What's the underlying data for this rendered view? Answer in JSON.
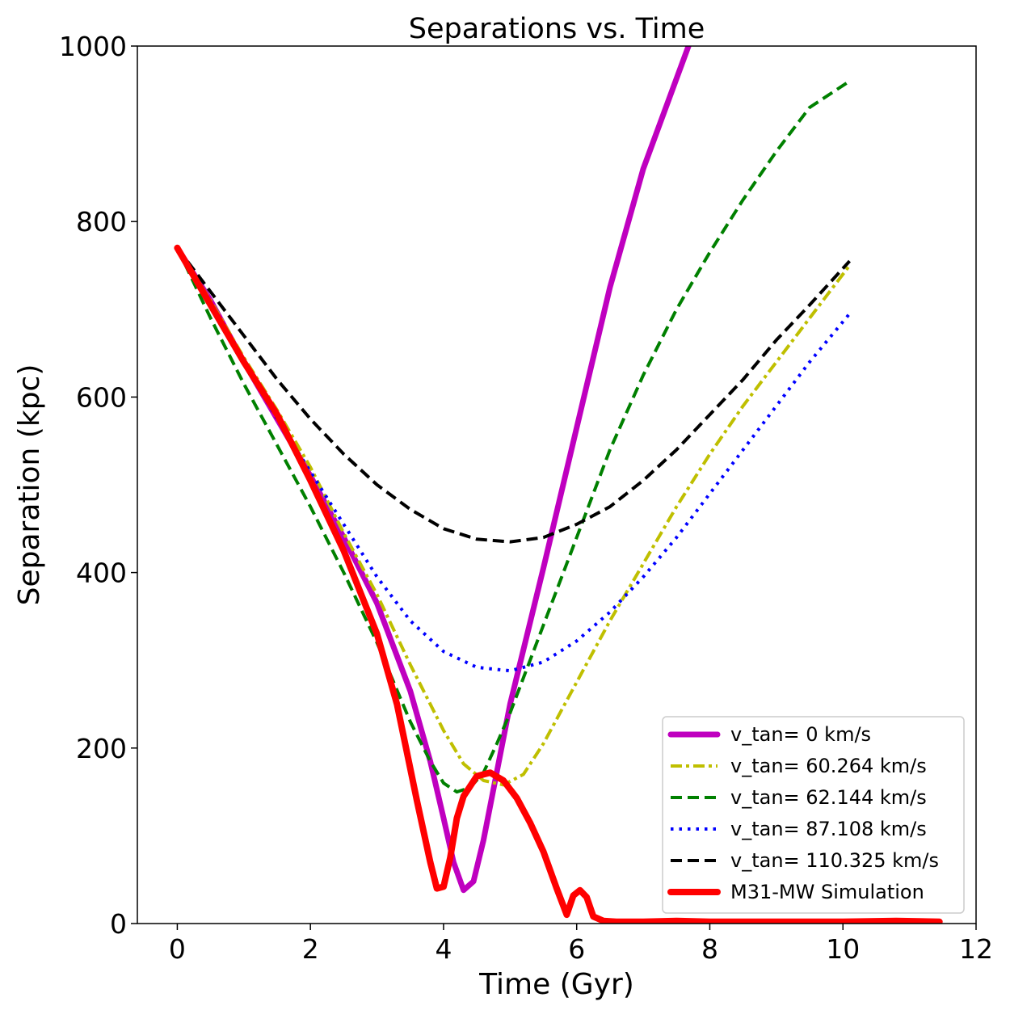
{
  "chart_data": {
    "type": "line",
    "title": "Separations vs. Time",
    "xlabel": "Time (Gyr)",
    "ylabel": "Separation (kpc)",
    "xlim": [
      -0.6,
      12
    ],
    "ylim": [
      0,
      1000
    ],
    "xticks": [
      0,
      2,
      4,
      6,
      8,
      10,
      12
    ],
    "yticks": [
      0,
      200,
      400,
      600,
      800,
      1000
    ],
    "grid": false,
    "legend_position": "lower-right",
    "series": [
      {
        "name": "v_tan= 0 km/s",
        "color": "#bf00bf",
        "style": "solid",
        "x": [
          0,
          0.5,
          1,
          1.5,
          2,
          2.5,
          3,
          3.5,
          3.8,
          4.0,
          4.15,
          4.3,
          4.45,
          4.6,
          5.0,
          5.5,
          6.0,
          6.5,
          7.0,
          7.68
        ],
        "y": [
          770,
          710,
          640,
          575,
          510,
          440,
          365,
          265,
          185,
          120,
          70,
          38,
          48,
          95,
          250,
          405,
          565,
          725,
          860,
          1000
        ]
      },
      {
        "name": "v_tan= 60.264 km/s",
        "color": "#bfbf00",
        "style": "dashdot",
        "x": [
          0,
          0.5,
          1,
          1.5,
          2,
          2.5,
          3,
          3.5,
          4.0,
          4.3,
          4.6,
          4.9,
          5.2,
          5.5,
          6.0,
          6.5,
          7.0,
          7.5,
          8.0,
          8.5,
          9.0,
          9.5,
          10.1
        ],
        "y": [
          770,
          710,
          645,
          585,
          520,
          445,
          375,
          295,
          220,
          182,
          163,
          158,
          170,
          205,
          275,
          345,
          410,
          475,
          535,
          590,
          640,
          690,
          750
        ]
      },
      {
        "name": "v_tan= 62.144 km/s",
        "color": "#008000",
        "style": "dashed",
        "x": [
          0,
          0.5,
          1,
          1.5,
          2,
          2.5,
          3,
          3.5,
          3.8,
          4.0,
          4.2,
          4.4,
          4.6,
          4.8,
          5.0,
          5.5,
          6.0,
          6.5,
          7.0,
          7.5,
          8.0,
          8.5,
          9.0,
          9.5,
          10.1
        ],
        "y": [
          770,
          690,
          615,
          545,
          475,
          400,
          320,
          230,
          185,
          160,
          150,
          155,
          172,
          205,
          240,
          340,
          440,
          540,
          625,
          700,
          765,
          825,
          880,
          930,
          960
        ]
      },
      {
        "name": "v_tan= 87.108 km/s",
        "color": "#0000ff",
        "style": "dotted",
        "x": [
          0,
          0.5,
          1,
          1.5,
          2,
          2.5,
          3,
          3.5,
          4.0,
          4.5,
          5.0,
          5.5,
          6.0,
          6.5,
          7.0,
          7.5,
          8.0,
          8.5,
          9.0,
          9.5,
          10.1
        ],
        "y": [
          770,
          705,
          640,
          575,
          515,
          455,
          395,
          345,
          310,
          292,
          288,
          298,
          322,
          355,
          395,
          440,
          490,
          540,
          590,
          640,
          695
        ]
      },
      {
        "name": "v_tan= 110.325 km/s",
        "color": "#000000",
        "style": "dashed",
        "x": [
          0,
          0.5,
          1,
          1.5,
          2,
          2.5,
          3,
          3.5,
          4.0,
          4.5,
          5.0,
          5.5,
          6.0,
          6.5,
          7.0,
          7.5,
          8.0,
          8.5,
          9.0,
          9.5,
          10.1
        ],
        "y": [
          770,
          720,
          670,
          620,
          575,
          535,
          500,
          472,
          450,
          438,
          435,
          440,
          455,
          475,
          505,
          540,
          580,
          620,
          665,
          705,
          755
        ]
      },
      {
        "name": "M31-MW Simulation",
        "color": "#ff0000",
        "style": "solid",
        "x": [
          0,
          0.5,
          1,
          1.5,
          2,
          2.5,
          3,
          3.3,
          3.6,
          3.8,
          3.9,
          4.0,
          4.1,
          4.2,
          4.3,
          4.5,
          4.7,
          4.9,
          5.1,
          5.3,
          5.5,
          5.7,
          5.85,
          5.95,
          6.05,
          6.15,
          6.25,
          6.4,
          6.6,
          7.0,
          7.5,
          8.0,
          9.0,
          10.0,
          10.8,
          11.45
        ],
        "y": [
          770,
          705,
          640,
          580,
          505,
          425,
          330,
          250,
          140,
          70,
          40,
          42,
          75,
          120,
          145,
          168,
          172,
          163,
          143,
          115,
          82,
          40,
          10,
          32,
          38,
          30,
          8,
          3,
          2,
          2,
          3,
          2,
          2,
          2,
          3,
          2
        ]
      }
    ]
  }
}
